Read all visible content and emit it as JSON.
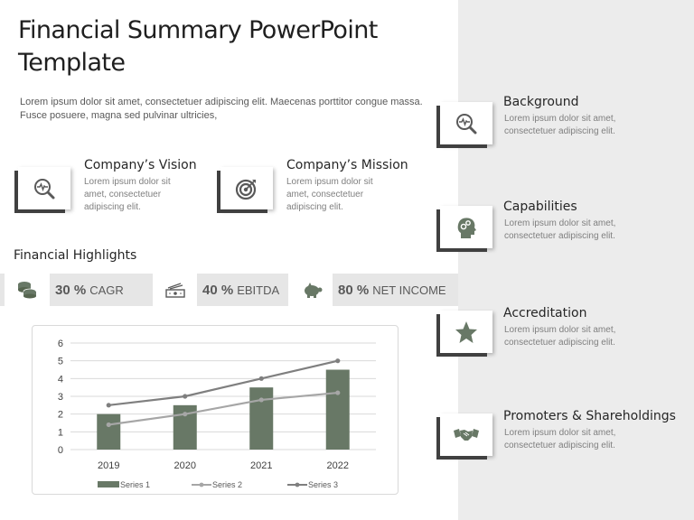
{
  "slide": {
    "title": "Financial Summary PowerPoint Template",
    "intro": "Lorem ipsum dolor sit amet, consectetuer adipiscing elit. Maecenas porttitor congue massa. Fusce posuere, magna sed pulvinar ultricies,"
  },
  "colors": {
    "accent": "#687866",
    "dark_border": "#404040",
    "panel_bg": "#ececec",
    "kpi_bg": "#e6e6e6",
    "series1": "#687866",
    "series2": "#a6a6a6",
    "series3": "#7f7f7f"
  },
  "left_cards": [
    {
      "icon": "search-pulse-icon",
      "title": "Company’s Vision",
      "desc": "Lorem ipsum dolor sit amet, consectetuer adipiscing elit."
    },
    {
      "icon": "target-icon",
      "title": "Company’s Mission",
      "desc": "Lorem ipsum dolor sit amet, consectetuer adipiscing elit."
    }
  ],
  "highlights": {
    "title": "Financial Highlights",
    "kpis": [
      {
        "icon": "coins-icon",
        "value": "30 %",
        "label": "CAGR"
      },
      {
        "icon": "cash-icon",
        "value": "40 %",
        "label": "EBITDA"
      },
      {
        "icon": "piggy-bank-icon",
        "value": "80 %",
        "label": "NET INCOME"
      }
    ]
  },
  "right_items": [
    {
      "icon": "search-pulse-icon",
      "title": "Background",
      "desc": "Lorem ipsum dolor sit amet, consectetuer adipiscing elit."
    },
    {
      "icon": "head-gears-icon",
      "title": "Capabilities",
      "desc": "Lorem ipsum dolor sit amet, consectetuer adipiscing elit."
    },
    {
      "icon": "star-icon",
      "title": "Accreditation",
      "desc": "Lorem ipsum dolor sit amet, consectetuer adipiscing elit."
    },
    {
      "icon": "handshake-icon",
      "title": "Promoters & Shareholdings",
      "desc": "Lorem ipsum dolor sit amet, consectetuer adipiscing elit."
    }
  ],
  "chart_data": {
    "type": "bar",
    "title": "",
    "xlabel": "",
    "ylabel": "",
    "categories": [
      "2019",
      "2020",
      "2021",
      "2022"
    ],
    "ylim": [
      0,
      6
    ],
    "yticks": [
      "0",
      "1",
      "2",
      "3",
      "4",
      "5",
      "6"
    ],
    "grid": true,
    "legend_position": "bottom",
    "series": [
      {
        "name": "Series 1",
        "kind": "bar",
        "values": [
          2,
          2.5,
          3.5,
          4.5
        ]
      },
      {
        "name": "Series 2",
        "kind": "line",
        "values": [
          1.4,
          2,
          2.8,
          3.2
        ]
      },
      {
        "name": "Series 3",
        "kind": "line",
        "values": [
          2.5,
          3,
          4,
          5
        ]
      }
    ]
  }
}
